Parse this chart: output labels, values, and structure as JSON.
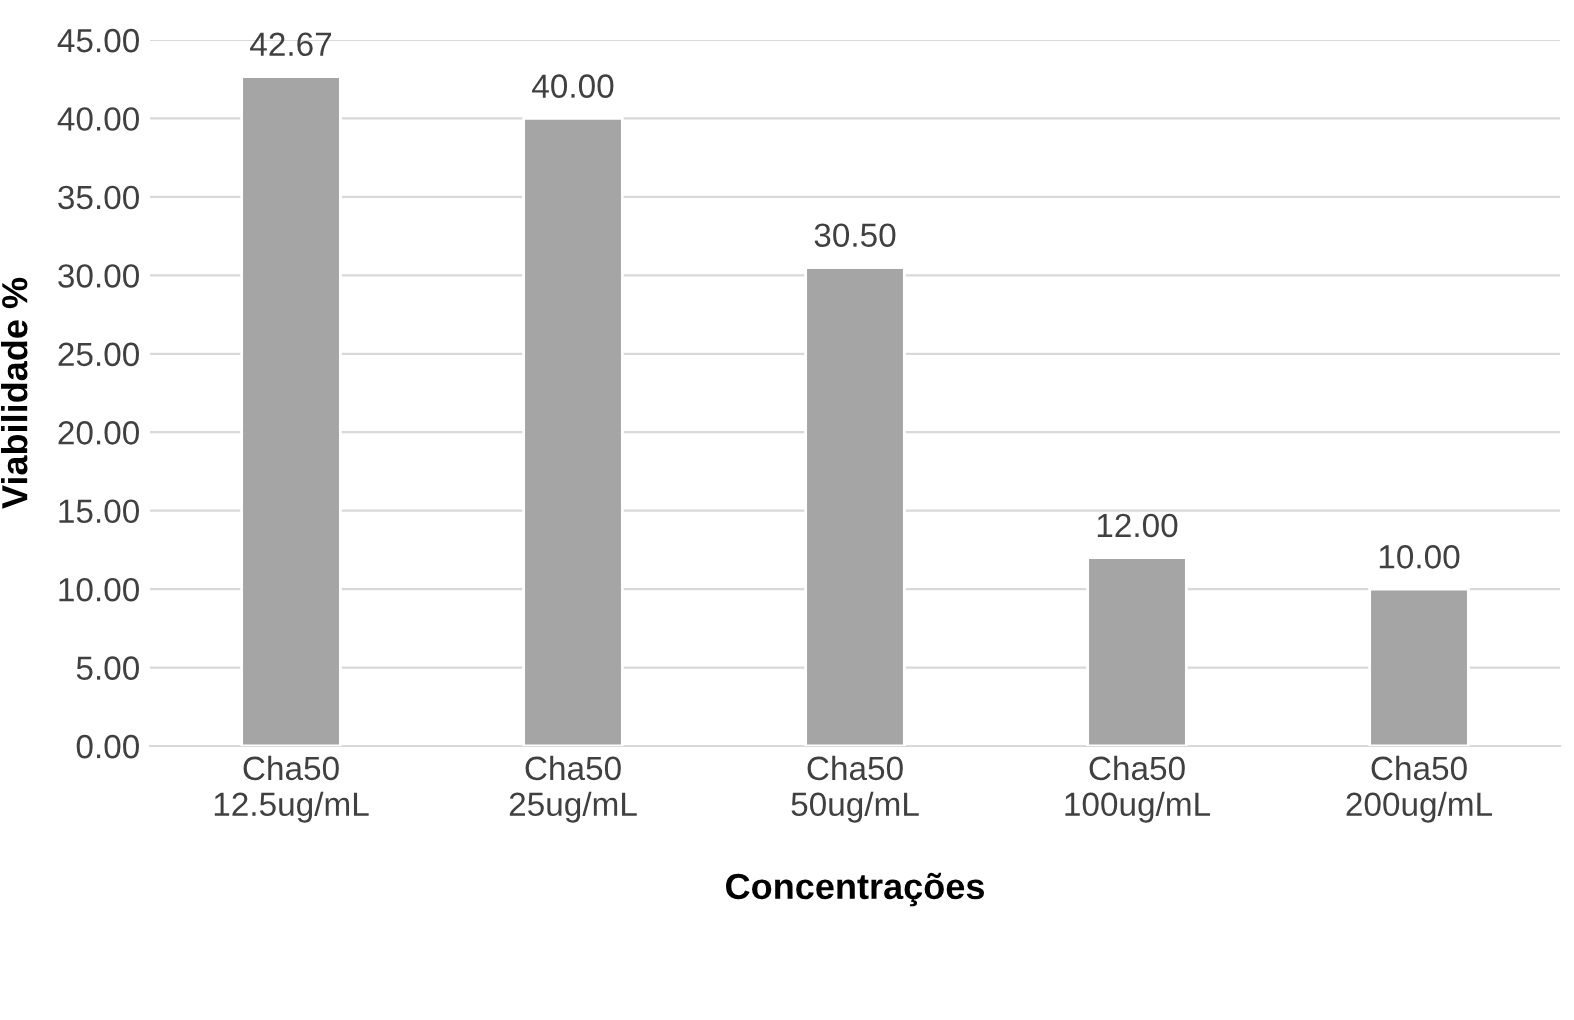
{
  "chart_data": {
    "type": "bar",
    "xlabel": "Concentrações",
    "ylabel": "Viabilidade %",
    "categories": [
      "Cha50\n12.5ug/mL",
      "Cha50\n25ug/mL",
      "Cha50\n50ug/mL",
      "Cha50\n100ug/mL",
      "Cha50\n200ug/mL"
    ],
    "values": [
      42.67,
      40.0,
      30.5,
      12.0,
      10.0
    ],
    "value_labels": [
      "42.67",
      "40.00",
      "30.50",
      "12.00",
      "10.00"
    ],
    "color": "#a5a5a5",
    "ylim": [
      0,
      45
    ],
    "yticks": [
      {
        "value": 0,
        "label": "0.00"
      },
      {
        "value": 5,
        "label": "5.00"
      },
      {
        "value": 10,
        "label": "10.00"
      },
      {
        "value": 15,
        "label": "15.00"
      },
      {
        "value": 20,
        "label": "20.00"
      },
      {
        "value": 25,
        "label": "25.00"
      },
      {
        "value": 30,
        "label": "30.00"
      },
      {
        "value": 35,
        "label": "35.00"
      },
      {
        "value": 40,
        "label": "40.00"
      },
      {
        "value": 45,
        "label": "45.00"
      }
    ],
    "grid": "y",
    "legend": false
  }
}
